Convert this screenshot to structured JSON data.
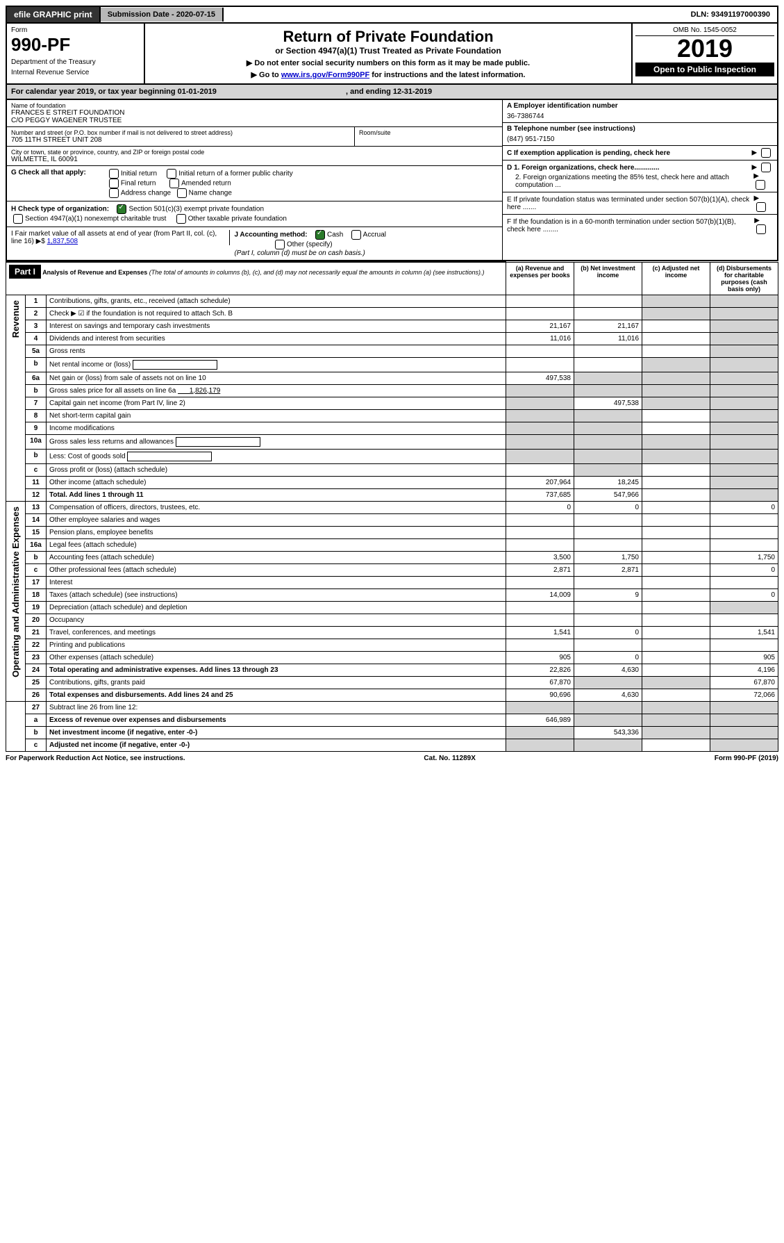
{
  "topbar": {
    "efile": "efile GRAPHIC print",
    "submission": "Submission Date - 2020-07-15",
    "dln": "DLN: 93491197000390"
  },
  "header": {
    "form_label": "Form",
    "form_number": "990-PF",
    "dept1": "Department of the Treasury",
    "dept2": "Internal Revenue Service",
    "title": "Return of Private Foundation",
    "subtitle": "or Section 4947(a)(1) Trust Treated as Private Foundation",
    "instr1": "▶ Do not enter social security numbers on this form as it may be made public.",
    "instr2_pre": "▶ Go to ",
    "instr2_link": "www.irs.gov/Form990PF",
    "instr2_post": " for instructions and the latest information.",
    "omb": "OMB No. 1545-0052",
    "year": "2019",
    "open": "Open to Public Inspection"
  },
  "cal": {
    "text_pre": "For calendar year 2019, or tax year beginning 01-01-2019",
    "text_post": ", and ending 12-31-2019"
  },
  "info": {
    "name_label": "Name of foundation",
    "name1": "FRANCES E STREIT FOUNDATION",
    "name2": "C/O PEGGY WAGENER TRUSTEE",
    "addr_label": "Number and street (or P.O. box number if mail is not delivered to street address)",
    "addr": "705 11TH STREET UNIT 208",
    "room_label": "Room/suite",
    "city_label": "City or town, state or province, country, and ZIP or foreign postal code",
    "city": "WILMETTE, IL  60091",
    "a_label": "A Employer identification number",
    "a_val": "36-7386744",
    "b_label": "B Telephone number (see instructions)",
    "b_val": "(847) 951-7150",
    "c_label": "C If exemption application is pending, check here",
    "g_label": "G Check all that apply:",
    "g_opts": [
      "Initial return",
      "Initial return of a former public charity",
      "Final return",
      "Amended return",
      "Address change",
      "Name change"
    ],
    "d1": "D 1. Foreign organizations, check here.............",
    "d2": "2. Foreign organizations meeting the 85% test, check here and attach computation ...",
    "h_label": "H Check type of organization:",
    "h_opt1": "Section 501(c)(3) exempt private foundation",
    "h_opt2": "Section 4947(a)(1) nonexempt charitable trust",
    "h_opt3": "Other taxable private foundation",
    "e_label": "E  If private foundation status was terminated under section 507(b)(1)(A), check here .......",
    "i_label": "I Fair market value of all assets at end of year (from Part II, col. (c), line 16) ▶$",
    "i_val": "1,837,508",
    "j_label": "J Accounting method:",
    "j_cash": "Cash",
    "j_accrual": "Accrual",
    "j_other": "Other (specify)",
    "j_note": "(Part I, column (d) must be on cash basis.)",
    "f_label": "F  If the foundation is in a 60-month termination under section 507(b)(1)(B), check here ........"
  },
  "part1": {
    "header": "Part I",
    "title": "Analysis of Revenue and Expenses",
    "title_note": "(The total of amounts in columns (b), (c), and (d) may not necessarily equal the amounts in column (a) (see instructions).)",
    "cols": {
      "a": "(a) Revenue and expenses per books",
      "b": "(b) Net investment income",
      "c": "(c) Adjusted net income",
      "d": "(d) Disbursements for charitable purposes (cash basis only)"
    },
    "side_rev": "Revenue",
    "side_exp": "Operating and Administrative Expenses"
  },
  "rows": [
    {
      "n": "1",
      "desc": "Contributions, gifts, grants, etc., received (attach schedule)",
      "a": "",
      "b": "",
      "c": "s",
      "d": "s"
    },
    {
      "n": "2",
      "desc": "Check ▶ ☑ if the foundation is not required to attach Sch. B",
      "a": "",
      "b": "",
      "c": "s",
      "d": "s",
      "bold_not": true
    },
    {
      "n": "3",
      "desc": "Interest on savings and temporary cash investments",
      "a": "21,167",
      "b": "21,167",
      "c": "",
      "d": "s"
    },
    {
      "n": "4",
      "desc": "Dividends and interest from securities",
      "a": "11,016",
      "b": "11,016",
      "c": "",
      "d": "s"
    },
    {
      "n": "5a",
      "desc": "Gross rents",
      "a": "",
      "b": "",
      "c": "",
      "d": "s"
    },
    {
      "n": "b",
      "desc": "Net rental income or (loss)",
      "a": "",
      "b": "",
      "c": "s",
      "d": "s",
      "inline_box": true
    },
    {
      "n": "6a",
      "desc": "Net gain or (loss) from sale of assets not on line 10",
      "a": "497,538",
      "b": "s",
      "c": "s",
      "d": "s"
    },
    {
      "n": "b",
      "desc": "Gross sales price for all assets on line 6a",
      "inline_val": "1,826,179",
      "a": "s",
      "b": "s",
      "c": "s",
      "d": "s"
    },
    {
      "n": "7",
      "desc": "Capital gain net income (from Part IV, line 2)",
      "a": "s",
      "b": "497,538",
      "c": "s",
      "d": "s"
    },
    {
      "n": "8",
      "desc": "Net short-term capital gain",
      "a": "s",
      "b": "s",
      "c": "",
      "d": "s"
    },
    {
      "n": "9",
      "desc": "Income modifications",
      "a": "s",
      "b": "s",
      "c": "",
      "d": "s"
    },
    {
      "n": "10a",
      "desc": "Gross sales less returns and allowances",
      "a": "s",
      "b": "s",
      "c": "s",
      "d": "s",
      "inline_box": true
    },
    {
      "n": "b",
      "desc": "Less: Cost of goods sold",
      "a": "s",
      "b": "s",
      "c": "s",
      "d": "s",
      "inline_box": true
    },
    {
      "n": "c",
      "desc": "Gross profit or (loss) (attach schedule)",
      "a": "",
      "b": "s",
      "c": "",
      "d": "s"
    },
    {
      "n": "11",
      "desc": "Other income (attach schedule)",
      "a": "207,964",
      "b": "18,245",
      "c": "",
      "d": "s"
    },
    {
      "n": "12",
      "desc": "Total. Add lines 1 through 11",
      "a": "737,685",
      "b": "547,966",
      "c": "",
      "d": "s",
      "bold": true
    }
  ],
  "exp_rows": [
    {
      "n": "13",
      "desc": "Compensation of officers, directors, trustees, etc.",
      "a": "0",
      "b": "0",
      "c": "",
      "d": "0"
    },
    {
      "n": "14",
      "desc": "Other employee salaries and wages",
      "a": "",
      "b": "",
      "c": "",
      "d": ""
    },
    {
      "n": "15",
      "desc": "Pension plans, employee benefits",
      "a": "",
      "b": "",
      "c": "",
      "d": ""
    },
    {
      "n": "16a",
      "desc": "Legal fees (attach schedule)",
      "a": "",
      "b": "",
      "c": "",
      "d": ""
    },
    {
      "n": "b",
      "desc": "Accounting fees (attach schedule)",
      "a": "3,500",
      "b": "1,750",
      "c": "",
      "d": "1,750"
    },
    {
      "n": "c",
      "desc": "Other professional fees (attach schedule)",
      "a": "2,871",
      "b": "2,871",
      "c": "",
      "d": "0"
    },
    {
      "n": "17",
      "desc": "Interest",
      "a": "",
      "b": "",
      "c": "",
      "d": ""
    },
    {
      "n": "18",
      "desc": "Taxes (attach schedule) (see instructions)",
      "a": "14,009",
      "b": "9",
      "c": "",
      "d": "0"
    },
    {
      "n": "19",
      "desc": "Depreciation (attach schedule) and depletion",
      "a": "",
      "b": "",
      "c": "",
      "d": "s"
    },
    {
      "n": "20",
      "desc": "Occupancy",
      "a": "",
      "b": "",
      "c": "",
      "d": ""
    },
    {
      "n": "21",
      "desc": "Travel, conferences, and meetings",
      "a": "1,541",
      "b": "0",
      "c": "",
      "d": "1,541"
    },
    {
      "n": "22",
      "desc": "Printing and publications",
      "a": "",
      "b": "",
      "c": "",
      "d": ""
    },
    {
      "n": "23",
      "desc": "Other expenses (attach schedule)",
      "a": "905",
      "b": "0",
      "c": "",
      "d": "905"
    },
    {
      "n": "24",
      "desc": "Total operating and administrative expenses. Add lines 13 through 23",
      "a": "22,826",
      "b": "4,630",
      "c": "",
      "d": "4,196",
      "bold": true
    },
    {
      "n": "25",
      "desc": "Contributions, gifts, grants paid",
      "a": "67,870",
      "b": "s",
      "c": "s",
      "d": "67,870"
    },
    {
      "n": "26",
      "desc": "Total expenses and disbursements. Add lines 24 and 25",
      "a": "90,696",
      "b": "4,630",
      "c": "",
      "d": "72,066",
      "bold": true
    }
  ],
  "rows27": [
    {
      "n": "27",
      "desc": "Subtract line 26 from line 12:",
      "a": "s",
      "b": "s",
      "c": "s",
      "d": "s"
    },
    {
      "n": "a",
      "desc": "Excess of revenue over expenses and disbursements",
      "a": "646,989",
      "b": "s",
      "c": "s",
      "d": "s",
      "bold": true
    },
    {
      "n": "b",
      "desc": "Net investment income (if negative, enter -0-)",
      "a": "s",
      "b": "543,336",
      "c": "s",
      "d": "s",
      "bold": true
    },
    {
      "n": "c",
      "desc": "Adjusted net income (if negative, enter -0-)",
      "a": "s",
      "b": "s",
      "c": "",
      "d": "s",
      "bold": true
    }
  ],
  "footer": {
    "left": "For Paperwork Reduction Act Notice, see instructions.",
    "mid": "Cat. No. 11289X",
    "right": "Form 990-PF (2019)"
  }
}
